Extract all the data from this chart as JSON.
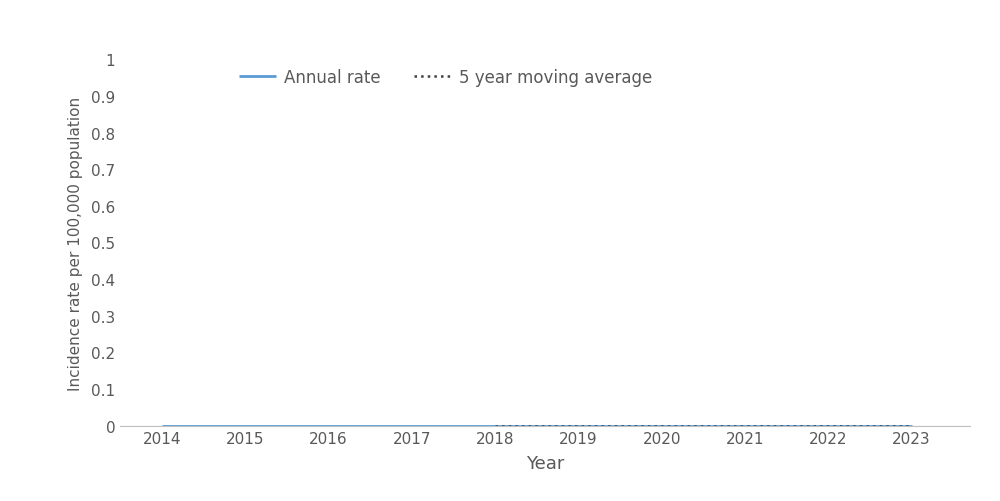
{
  "years": [
    2014,
    2015,
    2016,
    2017,
    2018,
    2019,
    2020,
    2021,
    2022,
    2023
  ],
  "annual_rate": [
    0.0,
    0.0,
    0.0,
    0.0,
    0.0,
    0.0,
    0.0,
    0.0,
    0.0,
    0.0
  ],
  "moving_avg": [
    null,
    null,
    null,
    null,
    0.0,
    0.0,
    0.0,
    0.0,
    0.0,
    0.0
  ],
  "annual_color": "#5B9BD5",
  "moving_avg_color": "#404040",
  "ylabel": "Incidence rate per 100,000 population",
  "xlabel": "Year",
  "ylim": [
    0,
    0.95
  ],
  "yticks": [
    0,
    0.1,
    0.2,
    0.3,
    0.4,
    0.5,
    0.6,
    0.7,
    0.8,
    0.9,
    1.0
  ],
  "ytick_labels": [
    "0",
    "0.1",
    "0.2",
    "0.3",
    "0.4",
    "0.5",
    "0.6",
    "0.7",
    "0.8",
    "0.9",
    "1"
  ],
  "legend_annual": "Annual rate",
  "legend_moving": "5 year moving average",
  "background_color": "#ffffff",
  "annual_linewidth": 2.0,
  "moving_avg_linewidth": 1.8,
  "spine_color": "#c0c0c0",
  "tick_color": "#595959",
  "label_color": "#595959"
}
